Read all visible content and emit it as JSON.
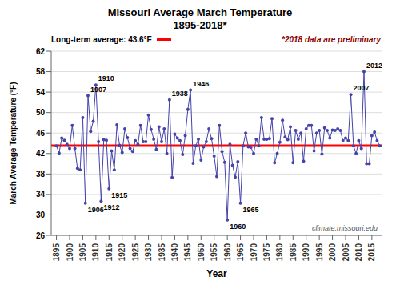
{
  "chart_data": {
    "type": "line",
    "title": "Missouri Average March Temperature",
    "subtitle": "1895-2018*",
    "xlabel": "Year",
    "ylabel": "March Average Temperature (°F)",
    "x": [
      1895,
      1896,
      1897,
      1898,
      1899,
      1900,
      1901,
      1902,
      1903,
      1904,
      1905,
      1906,
      1907,
      1908,
      1909,
      1910,
      1911,
      1912,
      1913,
      1914,
      1915,
      1916,
      1917,
      1918,
      1919,
      1920,
      1921,
      1922,
      1923,
      1924,
      1925,
      1926,
      1927,
      1928,
      1929,
      1930,
      1931,
      1932,
      1933,
      1934,
      1935,
      1936,
      1937,
      1938,
      1939,
      1940,
      1941,
      1942,
      1943,
      1944,
      1945,
      1946,
      1947,
      1948,
      1949,
      1950,
      1951,
      1952,
      1953,
      1954,
      1955,
      1956,
      1957,
      1958,
      1959,
      1960,
      1961,
      1962,
      1963,
      1964,
      1965,
      1966,
      1967,
      1968,
      1969,
      1970,
      1971,
      1972,
      1973,
      1974,
      1975,
      1976,
      1977,
      1978,
      1979,
      1980,
      1981,
      1982,
      1983,
      1984,
      1985,
      1986,
      1987,
      1988,
      1989,
      1990,
      1991,
      1992,
      1993,
      1994,
      1995,
      1996,
      1997,
      1998,
      1999,
      2000,
      2001,
      2002,
      2003,
      2004,
      2005,
      2006,
      2007,
      2008,
      2009,
      2010,
      2011,
      2012,
      2013,
      2014,
      2015,
      2016,
      2017,
      2018
    ],
    "values": [
      43.5,
      42.1,
      45.0,
      44.6,
      43.8,
      43.0,
      47.5,
      43.0,
      39.1,
      38.8,
      49.0,
      32.3,
      53.3,
      46.3,
      48.3,
      55.4,
      44.3,
      32.7,
      44.7,
      44.6,
      35.1,
      42.5,
      38.8,
      47.6,
      43.6,
      42.2,
      46.8,
      45.1,
      43.0,
      42.4,
      44.5,
      43.8,
      47.5,
      44.3,
      44.3,
      49.5,
      46.7,
      44.8,
      42.8,
      47.2,
      44.3,
      46.8,
      42.0,
      52.5,
      37.3,
      45.8,
      45.0,
      44.5,
      41.8,
      45.5,
      50.6,
      54.4,
      40.1,
      43.5,
      44.8,
      40.7,
      43.3,
      44.3,
      46.8,
      44.9,
      41.5,
      37.5,
      47.5,
      42.4,
      40.3,
      29.0,
      43.8,
      39.7,
      37.4,
      40.4,
      32.3,
      43.5,
      46.0,
      43.3,
      43.2,
      42.0,
      44.8,
      43.5,
      49.0,
      44.8,
      44.8,
      44.9,
      48.8,
      40.2,
      42.0,
      44.2,
      48.5,
      45.2,
      44.7,
      47.2,
      40.2,
      46.5,
      44.8,
      46.0,
      40.5,
      46.8,
      47.5,
      47.5,
      42.5,
      46.0,
      46.5,
      41.9,
      47.0,
      46.5,
      45.0,
      46.6,
      46.5,
      46.8,
      46.5,
      44.5,
      45.0,
      44.5,
      53.5,
      43.5,
      42.0,
      44.5,
      43.0,
      58.0,
      40.0,
      40.0,
      45.5,
      46.2,
      44.5,
      43.5
    ],
    "color": "#4444AA",
    "marker": "circle",
    "xlim": [
      1893,
      2019
    ],
    "xticks": [
      1895,
      1900,
      1905,
      1910,
      1915,
      1920,
      1925,
      1930,
      1935,
      1940,
      1945,
      1950,
      1955,
      1960,
      1965,
      1970,
      1975,
      1980,
      1985,
      1990,
      1995,
      2000,
      2005,
      2010,
      2015
    ],
    "ylim": [
      26.0,
      62.0
    ],
    "yticks": [
      26.0,
      30.0,
      34.0,
      38.0,
      42.0,
      46.0,
      50.0,
      54.0,
      58.0,
      62.0
    ],
    "grid": true,
    "reference_line": {
      "label": "Long-term average: 43.6°F",
      "value": 43.6,
      "color": "#FF0000"
    },
    "note": "*2018 data are preliminary",
    "watermark": "climate.missouri.edu",
    "annotations": [
      {
        "text": "1906",
        "x": 1906,
        "y": 32.3
      },
      {
        "text": "1907",
        "x": 1907,
        "y": 53.3
      },
      {
        "text": "1910",
        "x": 1910,
        "y": 55.4
      },
      {
        "text": "1912",
        "x": 1912,
        "y": 32.7
      },
      {
        "text": "1915",
        "x": 1915,
        "y": 35.1
      },
      {
        "text": "1938",
        "x": 1938,
        "y": 52.5
      },
      {
        "text": "1946",
        "x": 1946,
        "y": 54.4
      },
      {
        "text": "1960",
        "x": 1960,
        "y": 29.0
      },
      {
        "text": "1965",
        "x": 1965,
        "y": 32.3
      },
      {
        "text": "2007",
        "x": 2007,
        "y": 53.5
      },
      {
        "text": "2012",
        "x": 2012,
        "y": 58.0
      }
    ]
  }
}
